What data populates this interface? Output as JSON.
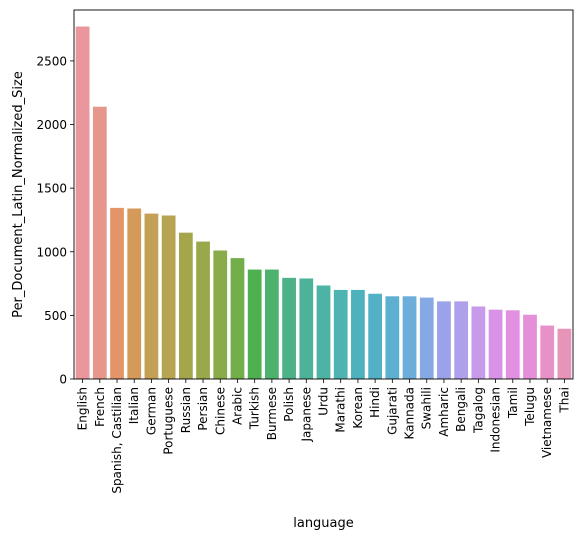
{
  "chart_data": {
    "type": "bar",
    "xlabel": "language",
    "ylabel": "Per_Document_Latin_Normalized_Size",
    "ylim": [
      0,
      2900
    ],
    "yticks": [
      0,
      500,
      1000,
      1500,
      2000,
      2500
    ],
    "ytick_labels": [
      "0",
      "500",
      "1000",
      "1500",
      "2000",
      "2500"
    ],
    "grid": false,
    "categories": [
      "English",
      "French",
      "Spanish, Castilian",
      "Italian",
      "German",
      "Portuguese",
      "Russian",
      "Persian",
      "Chinese",
      "Arabic",
      "Turkish",
      "Burmese",
      "Polish",
      "Japanese",
      "Urdu",
      "Marathi",
      "Korean",
      "Hindi",
      "Gujarati",
      "Kannada",
      "Swahili",
      "Amharic",
      "Bengali",
      "Tagalog",
      "Indonesian",
      "Tamil",
      "Telugu",
      "Vietnamese",
      "Thai"
    ],
    "values": [
      2770,
      2140,
      1345,
      1340,
      1300,
      1285,
      1150,
      1080,
      1010,
      950,
      860,
      860,
      795,
      790,
      735,
      700,
      700,
      670,
      650,
      650,
      640,
      610,
      610,
      570,
      545,
      540,
      505,
      420,
      395
    ],
    "colors": [
      "#e9969c",
      "#e6968a",
      "#e5946a",
      "#d59a5a",
      "#c3a055",
      "#b5a450",
      "#a5a64b",
      "#9aa84c",
      "#8aab49",
      "#73ae4a",
      "#4fb04f",
      "#4db26e",
      "#4eb288",
      "#4db398",
      "#4db3a5",
      "#4eb3b1",
      "#4eb2bc",
      "#53b1c6",
      "#5eb0d0",
      "#6cadd9",
      "#84a9e4",
      "#9aa3ea",
      "#aea0ea",
      "#c79be9",
      "#d892e7",
      "#e190e2",
      "#e58fd8",
      "#e890c9",
      "#e894b8"
    ]
  }
}
